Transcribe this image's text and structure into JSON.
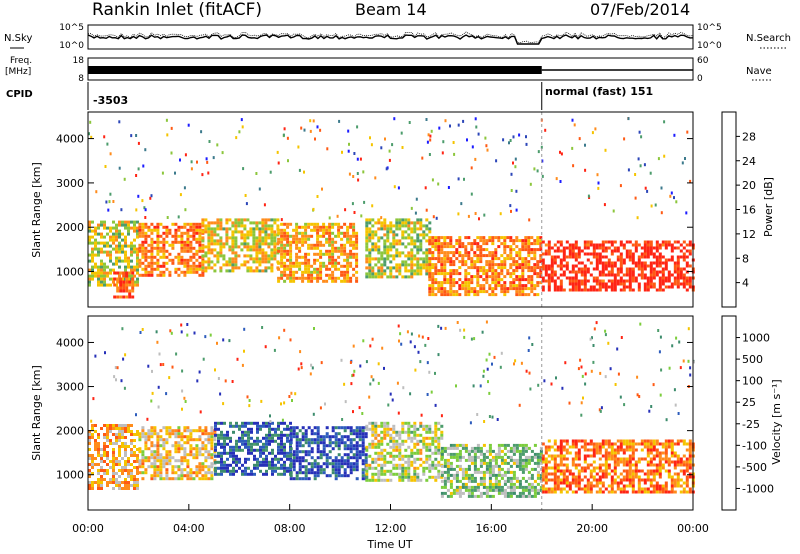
{
  "header": {
    "station": "Rankin Inlet (fitACF)",
    "beam": "Beam 14",
    "date": "07/Feb/2014"
  },
  "top_panels": {
    "nsky_label": "N.Sky",
    "nsky_ticks": [
      "10^5",
      "10^0"
    ],
    "nsearch_label": "N.Search",
    "nsearch_ticks": [
      "10^5",
      "10^0"
    ],
    "freq_label": "Freq.",
    "freq_unit": "[MHz]",
    "freq_ticks": [
      "18",
      "8"
    ],
    "nave_label": "Nave",
    "nave_ticks": [
      "60",
      "0"
    ],
    "cpid_label": "CPID",
    "cpid_value_1": "-3503",
    "cpid_value_2": "normal (fast) 151",
    "cpid_switch_hour": 18
  },
  "colors": {
    "power_scale": [
      "#1c1cff",
      "#2c46b8",
      "#3c7a8c",
      "#4c9c6c",
      "#8cc63c",
      "#f5c400",
      "#ff8c1c",
      "#ff5a14",
      "#ff2414"
    ],
    "velocity_scale": [
      "#2630b8",
      "#2d5cbc",
      "#3c8c6c",
      "#4c9c6c",
      "#7ccd3c",
      "#bebebe",
      "#f5c400",
      "#ff8c1c",
      "#ff5a14",
      "#ff2414"
    ]
  },
  "chart_data": [
    {
      "type": "heatmap",
      "name": "Power",
      "ylabel": "Slant Range [km]",
      "xlim": [
        0,
        24
      ],
      "ylim": [
        200,
        4600
      ],
      "yticks": [
        "1000",
        "2000",
        "3000",
        "4000"
      ],
      "colorbar_label": "Power [dB]",
      "colorbar_ticks": [
        "28",
        "24",
        "20",
        "16",
        "12",
        "8",
        "4"
      ],
      "bands": [
        {
          "t0": 0.0,
          "t1": 2.0,
          "r0": 700,
          "r1": 2150,
          "level": 0.55
        },
        {
          "t0": 1.0,
          "t1": 1.8,
          "r0": 400,
          "r1": 1000,
          "level": 0.85
        },
        {
          "t0": 2.0,
          "t1": 4.5,
          "r0": 900,
          "r1": 2100,
          "level": 0.75
        },
        {
          "t0": 4.5,
          "t1": 7.5,
          "r0": 1000,
          "r1": 2200,
          "level": 0.6
        },
        {
          "t0": 7.5,
          "t1": 10.7,
          "r0": 800,
          "r1": 2100,
          "level": 0.7
        },
        {
          "t0": 11.0,
          "t1": 13.5,
          "r0": 900,
          "r1": 2200,
          "level": 0.55
        },
        {
          "t0": 13.5,
          "t1": 18.0,
          "r0": 500,
          "r1": 1800,
          "level": 0.75
        },
        {
          "t0": 18.0,
          "t1": 24.0,
          "r0": 550,
          "r1": 1700,
          "level": 0.95
        }
      ]
    },
    {
      "type": "heatmap",
      "name": "Velocity",
      "ylabel": "Slant Range [km]",
      "xlabel": "Time UT",
      "xlim": [
        0,
        24
      ],
      "ylim": [
        200,
        4600
      ],
      "yticks": [
        "1000",
        "2000",
        "3000",
        "4000"
      ],
      "xticks": [
        "00:00",
        "04:00",
        "08:00",
        "12:00",
        "16:00",
        "20:00",
        "00:00"
      ],
      "colorbar_label": "Velocity [m s⁻¹]",
      "colorbar_ticks": [
        "1000",
        "500",
        "100",
        "25",
        "-25",
        "-100",
        "-500",
        "-1000"
      ],
      "bands": [
        {
          "t0": 0.0,
          "t1": 2.0,
          "r0": 700,
          "r1": 2150,
          "level": 0.7
        },
        {
          "t0": 2.0,
          "t1": 5.0,
          "r0": 900,
          "r1": 2100,
          "level": 0.65
        },
        {
          "t0": 5.0,
          "t1": 8.0,
          "r0": 1000,
          "r1": 2200,
          "level": 0.15
        },
        {
          "t0": 8.0,
          "t1": 11.0,
          "r0": 900,
          "r1": 2100,
          "level": 0.1
        },
        {
          "t0": 11.0,
          "t1": 14.0,
          "r0": 900,
          "r1": 2200,
          "level": 0.55
        },
        {
          "t0": 14.0,
          "t1": 18.0,
          "r0": 500,
          "r1": 1700,
          "level": 0.45
        },
        {
          "t0": 18.0,
          "t1": 24.0,
          "r0": 600,
          "r1": 1800,
          "level": 0.8
        }
      ]
    }
  ]
}
